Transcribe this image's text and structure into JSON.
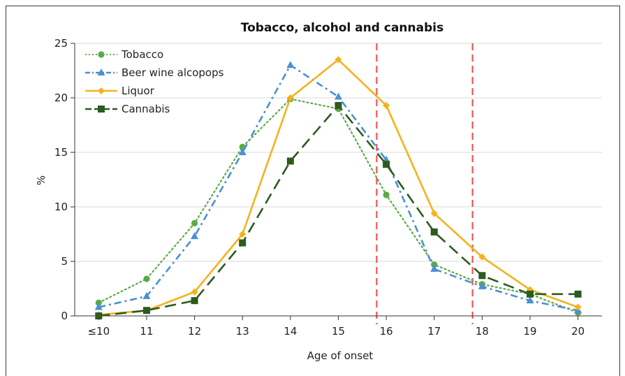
{
  "chart_data": {
    "type": "line",
    "title": "Tobacco, alcohol and cannabis",
    "xlabel": "Age of onset",
    "ylabel": "%",
    "categories": [
      "≤10",
      "11",
      "12",
      "13",
      "14",
      "15",
      "16",
      "17",
      "18",
      "19",
      "20"
    ],
    "ylim": [
      0,
      25
    ],
    "yticks": [
      0,
      5,
      10,
      15,
      20,
      25
    ],
    "grid": "horizontal",
    "legend_position": "top-left",
    "reference_lines": [
      {
        "at_category_fraction": 15.8,
        "color": "#ee5555",
        "style": "dashed"
      },
      {
        "at_category_fraction": 17.8,
        "color": "#ee5555",
        "style": "dashed"
      }
    ],
    "series": [
      {
        "name": "Tobacco",
        "color": "#5aaa46",
        "dash": "dotted",
        "marker": "circle",
        "values": [
          1.2,
          3.4,
          8.5,
          15.5,
          19.9,
          19.0,
          11.1,
          4.7,
          2.9,
          2.0,
          0.3
        ]
      },
      {
        "name": "Beer wine alcopops",
        "color": "#4a90d2",
        "dash": "dashdot",
        "marker": "triangle",
        "values": [
          0.8,
          1.8,
          7.3,
          15.0,
          23.0,
          20.1,
          14.3,
          4.3,
          2.7,
          1.4,
          0.5
        ]
      },
      {
        "name": "Liquor",
        "color": "#f5b21d",
        "dash": "solid",
        "marker": "diamond",
        "values": [
          0.1,
          0.5,
          2.2,
          7.5,
          20.0,
          23.5,
          19.3,
          9.4,
          5.4,
          2.4,
          0.8
        ]
      },
      {
        "name": "Cannabis",
        "color": "#2d5a1e",
        "dash": "longdash",
        "marker": "square",
        "values": [
          0.0,
          0.5,
          1.4,
          6.7,
          14.2,
          19.3,
          13.9,
          7.7,
          3.7,
          2.0,
          2.0
        ]
      }
    ]
  }
}
